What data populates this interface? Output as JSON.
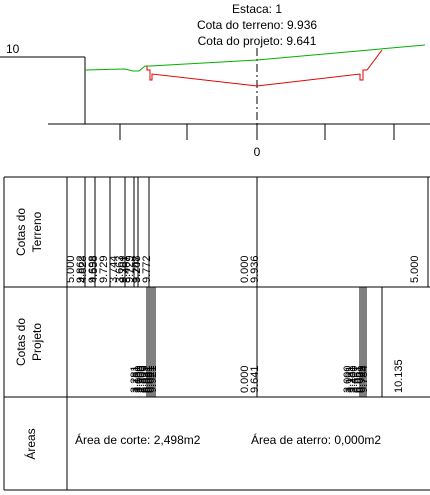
{
  "header": {
    "station": "Estaca: 1",
    "terrain_elevation": "Cota do terreno: 9.936",
    "project_elevation": "Cota do projeto: 9.641"
  },
  "axis": {
    "elevation_label": "10",
    "offset_label": "0"
  },
  "profile": {
    "terrain_color": "#00b000",
    "project_color": "#e00000"
  },
  "table": {
    "terrain_header_line1": "Cotas do",
    "terrain_header_line2": "Terreno",
    "project_header_line1": "Cotas do",
    "project_header_line2": "Projeto",
    "areas_header": "Áreas",
    "terrain_values": [
      {
        "dist": "5.000",
        "elev": "9.862"
      },
      {
        "dist": "4.828",
        "elev": "9.698"
      },
      {
        "dist": "4.558",
        "elev": "9.729"
      },
      {
        "dist": "3.744",
        "elev": "9.701"
      },
      {
        "dist": "3.663",
        "elev": "9.729"
      },
      {
        "dist": "3.407",
        "elev": "9.748"
      },
      {
        "dist": "3.207",
        "elev": "9.772"
      },
      {
        "dist": "0.000",
        "elev": "9.936"
      },
      {
        "dist": "5.000",
        "elev": ""
      }
    ],
    "project_values": [
      {
        "dist": "3.281",
        "elev": "9.929"
      },
      {
        "dist": "3.131",
        "elev": "9.921"
      },
      {
        "dist": "3.000",
        "elev": "9.921"
      },
      {
        "dist": "2.900",
        "elev": "9.921"
      },
      {
        "dist": "2.800",
        "elev": "9.921"
      },
      {
        "dist": "0.000",
        "elev": "9.641"
      },
      {
        "dist": "3.000",
        "elev": "9.961"
      },
      {
        "dist": "3.131",
        "elev": "9.921"
      },
      {
        "dist": "3.281",
        "elev": "9.929"
      },
      {
        "dist": "3.400",
        "elev": "9.784"
      },
      {
        "dist": "",
        "elev": "10.135"
      }
    ],
    "cut_area": "Área de corte: 2,498m2",
    "fill_area": "Área de aterro: 0,000m2"
  }
}
